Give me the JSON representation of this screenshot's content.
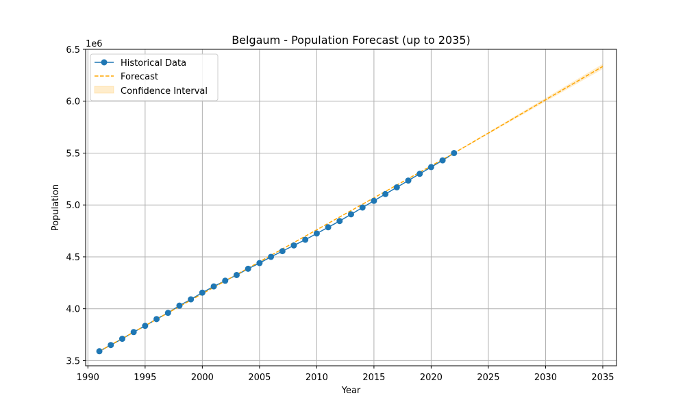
{
  "chart_data": {
    "type": "line",
    "title": "Belgaum - Population Forecast (up to 2035)",
    "xlabel": "Year",
    "ylabel": "Population",
    "y_offset_label": "1e6",
    "xlim": [
      1989.8,
      2036.2
    ],
    "ylim": [
      3.45,
      6.5
    ],
    "x_ticks": [
      1990,
      1995,
      2000,
      2005,
      2010,
      2015,
      2020,
      2025,
      2030,
      2035
    ],
    "x_tick_labels": [
      "1990",
      "1995",
      "2000",
      "2005",
      "2010",
      "2015",
      "2020",
      "2025",
      "2030",
      "2035"
    ],
    "y_ticks": [
      3.5,
      4.0,
      4.5,
      5.0,
      5.5,
      6.0,
      6.5
    ],
    "y_tick_labels": [
      "3.5",
      "4.0",
      "4.5",
      "5.0",
      "5.5",
      "6.0",
      "6.5"
    ],
    "grid": true,
    "legend_position": "top-left",
    "legend": [
      "Historical Data",
      "Forecast",
      "Confidence Interval"
    ],
    "series": [
      {
        "name": "Historical Data",
        "style": "solid-with-markers",
        "color": "#1f77b4",
        "x": [
          1991,
          1992,
          1993,
          1994,
          1995,
          1996,
          1997,
          1998,
          1999,
          2000,
          2001,
          2002,
          2003,
          2004,
          2005,
          2006,
          2007,
          2008,
          2009,
          2010,
          2011,
          2012,
          2013,
          2014,
          2015,
          2016,
          2017,
          2018,
          2019,
          2020,
          2021,
          2022
        ],
        "y": [
          3.59,
          3.65,
          3.71,
          3.775,
          3.835,
          3.9,
          3.96,
          4.03,
          4.09,
          4.155,
          4.215,
          4.27,
          4.325,
          4.385,
          4.44,
          4.5,
          4.555,
          4.61,
          4.665,
          4.725,
          4.785,
          4.845,
          4.91,
          4.975,
          5.04,
          5.105,
          5.17,
          5.235,
          5.3,
          5.365,
          5.43,
          5.5
        ]
      },
      {
        "name": "Forecast",
        "style": "dashed",
        "color": "#ffa500",
        "x": [
          1991,
          2022,
          2035
        ],
        "y": [
          3.59,
          5.5,
          6.335
        ]
      },
      {
        "name": "Confidence Interval",
        "style": "band",
        "color": "#ffa500",
        "x": [
          2022,
          2035
        ],
        "lower": [
          5.495,
          6.31
        ],
        "upper": [
          5.505,
          6.36
        ]
      }
    ]
  }
}
